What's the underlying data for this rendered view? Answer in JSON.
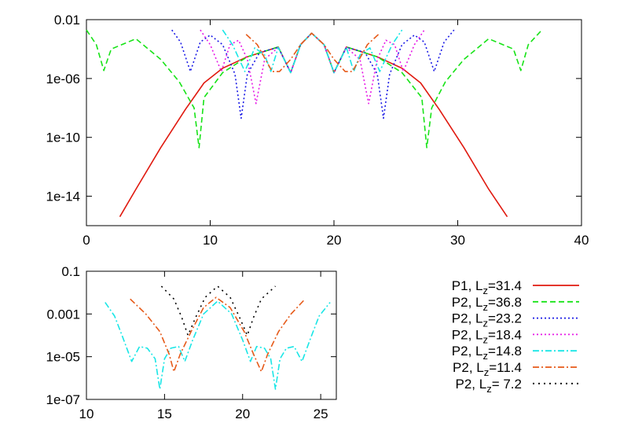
{
  "chart_data": [
    {
      "type": "line",
      "y_scale": "log",
      "xlim": [
        0,
        40
      ],
      "ylim": [
        1e-16,
        0.01
      ],
      "x_ticks": [
        "0",
        "10",
        "20",
        "30",
        "40"
      ],
      "y_ticks": [
        {
          "value": 0.01,
          "label": "0.01"
        },
        {
          "value": 1e-06,
          "label": "1e-06"
        },
        {
          "value": 1e-10,
          "label": "1e-10"
        },
        {
          "value": 1e-14,
          "label": "1e-14"
        }
      ],
      "series": [
        {
          "name": "P1, Lz=31.4",
          "color": "#e0190f",
          "dash": "solid",
          "points": [
            [
              2.7,
              4e-16
            ],
            [
              4,
              3e-14
            ],
            [
              6,
              2e-11
            ],
            [
              8,
              8e-09
            ],
            [
              9.5,
              5e-07
            ],
            [
              11,
              5e-06
            ],
            [
              13,
              3e-05
            ],
            [
              15.5,
              0.00014
            ],
            [
              16.5,
              2.5e-06
            ],
            [
              17.3,
              0.0002
            ],
            [
              18.2,
              0.0012
            ],
            [
              19.2,
              0.0002
            ],
            [
              20,
              2.5e-06
            ],
            [
              21,
              0.00014
            ],
            [
              23.5,
              3e-05
            ],
            [
              25.5,
              5e-06
            ],
            [
              27,
              5e-07
            ],
            [
              28.5,
              8e-09
            ],
            [
              30.5,
              2e-11
            ],
            [
              32.5,
              3e-14
            ],
            [
              34,
              4e-16
            ]
          ]
        },
        {
          "name": "P2, Lz=36.8",
          "color": "#17e317",
          "dash": "dashed",
          "points": [
            [
              0,
              0.002
            ],
            [
              0.8,
              0.0002
            ],
            [
              1.4,
              3.5e-06
            ],
            [
              2,
              0.0001
            ],
            [
              4,
              0.0005
            ],
            [
              6,
              2e-05
            ],
            [
              7.5,
              6e-07
            ],
            [
              8.7,
              1e-08
            ],
            [
              9.1,
              2e-11
            ],
            [
              9.5,
              5e-08
            ],
            [
              11,
              2.5e-06
            ],
            [
              13,
              3e-05
            ],
            [
              15.5,
              0.00014
            ],
            [
              16.5,
              2.5e-06
            ],
            [
              17.3,
              0.0002
            ],
            [
              18.2,
              0.0012
            ],
            [
              19.2,
              0.0002
            ],
            [
              20,
              2.5e-06
            ],
            [
              21,
              0.00014
            ],
            [
              23.5,
              3e-05
            ],
            [
              25.5,
              2.5e-06
            ],
            [
              27.1,
              5e-08
            ],
            [
              27.5,
              2e-11
            ],
            [
              27.9,
              1e-08
            ],
            [
              29,
              6e-07
            ],
            [
              30.5,
              2e-05
            ],
            [
              32.5,
              0.0005
            ],
            [
              34.5,
              0.0001
            ],
            [
              35.1,
              3.5e-06
            ],
            [
              35.7,
              0.0002
            ],
            [
              36.8,
              0.002
            ]
          ]
        },
        {
          "name": "P2, Lz=23.2",
          "color": "#1a1ae6",
          "dash": "dotted",
          "points": [
            [
              6.9,
              0.002
            ],
            [
              7.6,
              0.0003
            ],
            [
              8.4,
              3e-06
            ],
            [
              9.2,
              0.0003
            ],
            [
              10,
              0.0009
            ],
            [
              11,
              0.0002
            ],
            [
              12,
              2e-06
            ],
            [
              12.5,
              2e-09
            ],
            [
              13,
              2e-06
            ],
            [
              14,
              6e-05
            ],
            [
              15.5,
              0.00013
            ],
            [
              16.5,
              2.5e-06
            ],
            [
              17.3,
              0.0002
            ],
            [
              18.2,
              0.0012
            ],
            [
              19.2,
              0.0002
            ],
            [
              20,
              2.5e-06
            ],
            [
              21,
              0.00013
            ],
            [
              22.5,
              6e-05
            ],
            [
              23.5,
              2e-06
            ],
            [
              24,
              2e-09
            ],
            [
              24.5,
              2e-06
            ],
            [
              25.5,
              0.0002
            ],
            [
              26.5,
              0.0009
            ],
            [
              27.3,
              0.0003
            ],
            [
              28.1,
              3e-06
            ],
            [
              28.9,
              0.0003
            ],
            [
              29.7,
              0.002
            ]
          ]
        },
        {
          "name": "P2, Lz=18.4",
          "color": "#e619e6",
          "dash": "dotted",
          "points": [
            [
              9.2,
              0.002
            ],
            [
              10,
              0.0002
            ],
            [
              10.9,
              3e-06
            ],
            [
              11.6,
              0.0002
            ],
            [
              12.3,
              0.0004
            ],
            [
              13,
              2e-05
            ],
            [
              13.7,
              2e-08
            ],
            [
              14.4,
              2e-05
            ],
            [
              15.5,
              0.00013
            ],
            [
              16.5,
              2.5e-06
            ],
            [
              17.3,
              0.0002
            ],
            [
              18.2,
              0.0012
            ],
            [
              19.2,
              0.0002
            ],
            [
              20,
              2.5e-06
            ],
            [
              21,
              0.00013
            ],
            [
              22.1,
              2e-05
            ],
            [
              22.8,
              2e-08
            ],
            [
              23.5,
              2e-05
            ],
            [
              24.2,
              0.0004
            ],
            [
              24.9,
              0.0002
            ],
            [
              25.6,
              3e-06
            ],
            [
              26.5,
              0.0002
            ],
            [
              27.3,
              0.002
            ]
          ]
        },
        {
          "name": "P2, Lz=14.8",
          "color": "#19e6e6",
          "dash": "dashdot",
          "points": [
            [
              11,
              0.002
            ],
            [
              11.8,
              0.0002
            ],
            [
              12.8,
              3e-06
            ],
            [
              13.6,
              0.00012
            ],
            [
              14.4,
              4e-05
            ],
            [
              14.9,
              3e-06
            ],
            [
              15.5,
              0.00013
            ],
            [
              16.5,
              2.5e-06
            ],
            [
              17.3,
              0.0002
            ],
            [
              18.2,
              0.0012
            ],
            [
              19.2,
              0.0002
            ],
            [
              20,
              2.5e-06
            ],
            [
              21,
              0.00013
            ],
            [
              21.6,
              3e-06
            ],
            [
              22.1,
              4e-05
            ],
            [
              22.9,
              0.00012
            ],
            [
              23.7,
              3e-06
            ],
            [
              24.7,
              0.0002
            ],
            [
              25.5,
              0.002
            ]
          ]
        },
        {
          "name": "P2, Lz=11.4",
          "color": "#e65a19",
          "dash": "dashdot",
          "points": [
            [
              12.9,
              0.001
            ],
            [
              13.8,
              0.0002
            ],
            [
              15,
              3e-06
            ],
            [
              15.6,
              3e-06
            ],
            [
              16.5,
              2e-05
            ],
            [
              17.3,
              0.0002
            ],
            [
              18.2,
              0.0012
            ],
            [
              19.2,
              0.0002
            ],
            [
              20,
              2e-05
            ],
            [
              20.9,
              3e-06
            ],
            [
              21.5,
              3e-06
            ],
            [
              22.7,
              0.0002
            ],
            [
              23.6,
              0.001
            ]
          ]
        }
      ]
    },
    {
      "type": "line",
      "y_scale": "log",
      "xlim": [
        10,
        26
      ],
      "ylim": [
        1e-07,
        0.1
      ],
      "x_ticks": [
        "10",
        "15",
        "20",
        "25"
      ],
      "y_ticks": [
        {
          "value": 0.1,
          "label": "0.1"
        },
        {
          "value": 0.001,
          "label": "0.001"
        },
        {
          "value": 1e-05,
          "label": "1e-05"
        },
        {
          "value": 1e-07,
          "label": "1e-07"
        }
      ],
      "series": [
        {
          "name": "P2, Lz=14.8",
          "color": "#19e6e6",
          "dash": "dashdot",
          "points": [
            [
              11.2,
              0.0035
            ],
            [
              11.8,
              0.0008
            ],
            [
              12.3,
              9e-05
            ],
            [
              12.9,
              6e-06
            ],
            [
              13.4,
              3e-05
            ],
            [
              13.9,
              2.5e-05
            ],
            [
              14.4,
              8e-06
            ],
            [
              14.7,
              3e-07
            ],
            [
              15.0,
              8e-06
            ],
            [
              15.4,
              2.5e-05
            ],
            [
              15.9,
              3e-05
            ],
            [
              16.3,
              6e-06
            ],
            [
              16.8,
              6e-05
            ],
            [
              17.5,
              0.001
            ],
            [
              18.4,
              0.004
            ],
            [
              19.3,
              0.001
            ],
            [
              20,
              6e-05
            ],
            [
              20.5,
              6e-06
            ],
            [
              20.9,
              3e-05
            ],
            [
              21.4,
              2.5e-05
            ],
            [
              21.8,
              8e-06
            ],
            [
              22.1,
              3e-07
            ],
            [
              22.4,
              8e-06
            ],
            [
              22.8,
              2.5e-05
            ],
            [
              23.3,
              3e-05
            ],
            [
              23.8,
              6e-06
            ],
            [
              24.4,
              9e-05
            ],
            [
              24.9,
              0.0008
            ],
            [
              25.6,
              0.0035
            ]
          ]
        },
        {
          "name": "P2, Lz=11.4",
          "color": "#e65a19",
          "dash": "dashdot",
          "points": [
            [
              12.8,
              0.005
            ],
            [
              13.8,
              0.001
            ],
            [
              14.7,
              0.00015
            ],
            [
              15.3,
              1.3e-05
            ],
            [
              15.6,
              2e-06
            ],
            [
              16,
              1.3e-05
            ],
            [
              16.7,
              0.00015
            ],
            [
              17.5,
              0.002
            ],
            [
              18.3,
              0.006
            ],
            [
              19.2,
              0.002
            ],
            [
              20.1,
              0.00015
            ],
            [
              20.7,
              1.3e-05
            ],
            [
              21.2,
              2e-06
            ],
            [
              21.6,
              1.3e-05
            ],
            [
              22.3,
              0.00015
            ],
            [
              23.1,
              0.001
            ],
            [
              24,
              0.005
            ]
          ]
        },
        {
          "name": "P2, Lz= 7.2",
          "color": "#000000",
          "dash": "dots",
          "points": [
            [
              14.8,
              0.02
            ],
            [
              15.6,
              0.005
            ],
            [
              16.1,
              0.0007
            ],
            [
              16.5,
              0.0001
            ],
            [
              17,
              0.0007
            ],
            [
              17.6,
              0.006
            ],
            [
              18.4,
              0.02
            ],
            [
              19.2,
              0.006
            ],
            [
              19.8,
              0.0007
            ],
            [
              20.3,
              0.0001
            ],
            [
              20.7,
              0.0007
            ],
            [
              21.2,
              0.005
            ],
            [
              22.1,
              0.02
            ]
          ]
        }
      ]
    }
  ],
  "legend": [
    {
      "name": "P1, L",
      "sub": "z",
      "rest": "=31.4",
      "color": "#e0190f",
      "dash": "solid"
    },
    {
      "name": "P2, L",
      "sub": "z",
      "rest": "=36.8",
      "color": "#17e317",
      "dash": "dashed"
    },
    {
      "name": "P2, L",
      "sub": "z",
      "rest": "=23.2",
      "color": "#1a1ae6",
      "dash": "dotted"
    },
    {
      "name": "P2, L",
      "sub": "z",
      "rest": "=18.4",
      "color": "#e619e6",
      "dash": "dotted"
    },
    {
      "name": "P2, L",
      "sub": "z",
      "rest": "=14.8",
      "color": "#19e6e6",
      "dash": "dashdot"
    },
    {
      "name": "P2, L",
      "sub": "z",
      "rest": "=11.4",
      "color": "#e65a19",
      "dash": "dashdot"
    },
    {
      "name": "P2, L",
      "sub": "z",
      "rest": "= 7.2",
      "color": "#000000",
      "dash": "dots"
    }
  ]
}
